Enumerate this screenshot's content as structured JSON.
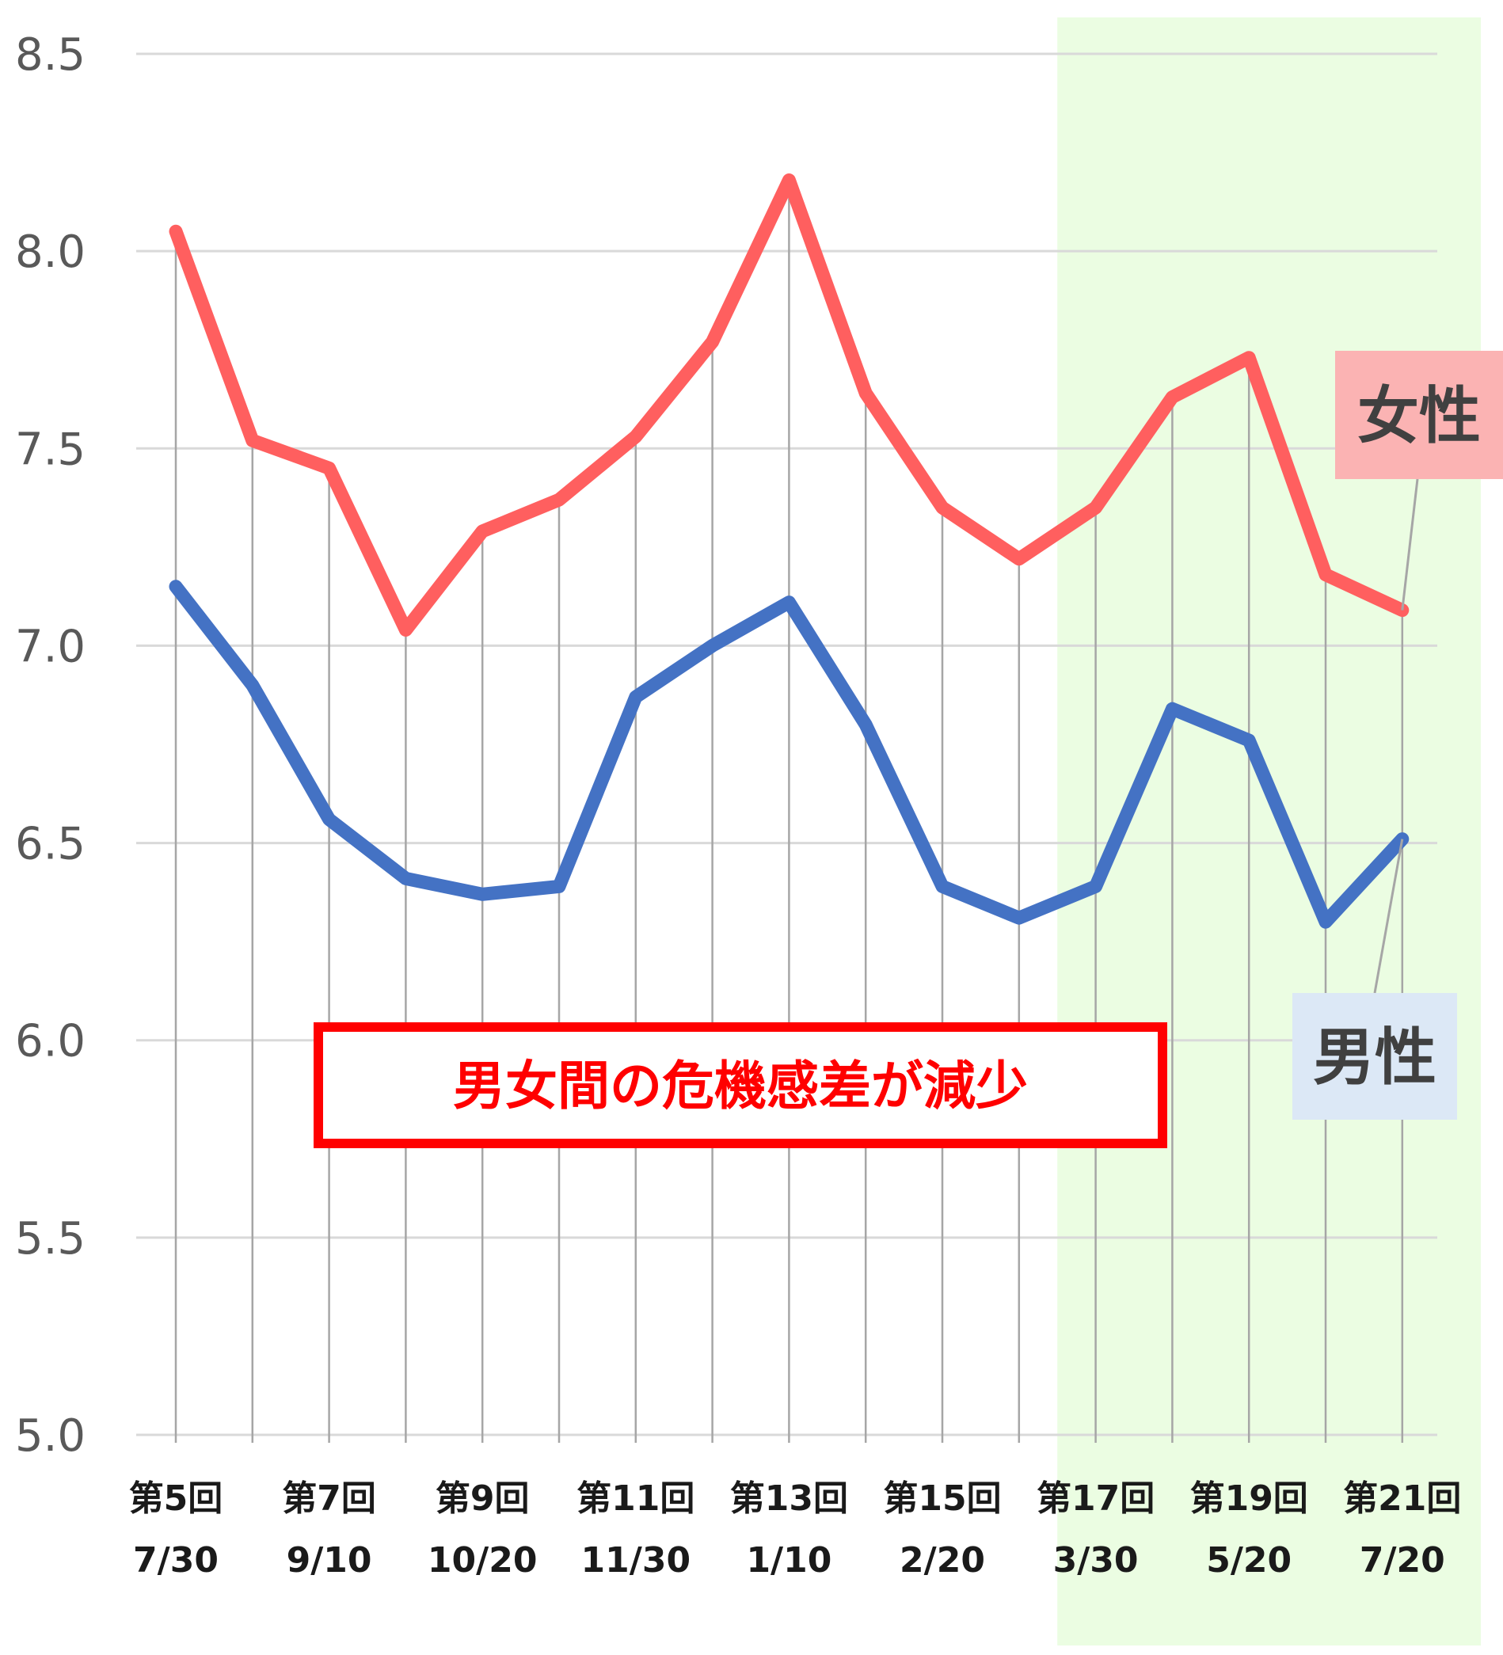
{
  "chart_data": {
    "type": "line",
    "title": "",
    "xlabel": "",
    "ylabel": "",
    "ylim": [
      5.0,
      8.5
    ],
    "yticks": [
      "5.0",
      "5.5",
      "6.0",
      "6.5",
      "7.0",
      "7.5",
      "8.0",
      "8.5"
    ],
    "grid": "horizontal and vertical",
    "categories": [
      [
        "第5回",
        "7/30"
      ],
      [
        "",
        ""
      ],
      [
        "第7回",
        "9/10"
      ],
      [
        "",
        ""
      ],
      [
        "第9回",
        "10/20"
      ],
      [
        "",
        ""
      ],
      [
        "第11回",
        "11/30"
      ],
      [
        "",
        ""
      ],
      [
        "第13回",
        "1/10"
      ],
      [
        "",
        ""
      ],
      [
        "第15回",
        "2/20"
      ],
      [
        "",
        ""
      ],
      [
        "第17回",
        "3/30"
      ],
      [
        "",
        ""
      ],
      [
        "第19回",
        "5/20"
      ],
      [
        "",
        ""
      ],
      [
        "第21回",
        "7/20"
      ]
    ],
    "highlight_range": {
      "from_index": 11.5,
      "to_index": 16.5,
      "color": "#ebfde2"
    },
    "series": [
      {
        "name": "女性",
        "color": "#ff5f5f",
        "label_bg": "#fbb3b3",
        "values": [
          8.05,
          7.52,
          7.45,
          7.04,
          7.29,
          7.37,
          7.53,
          7.77,
          8.18,
          7.64,
          7.35,
          7.22,
          7.35,
          7.63,
          7.73,
          7.18,
          7.09
        ]
      },
      {
        "name": "男性",
        "color": "#4472c4",
        "label_bg": "#dce8f6",
        "values": [
          7.15,
          6.9,
          6.56,
          6.41,
          6.37,
          6.39,
          6.87,
          7.0,
          7.11,
          6.8,
          6.39,
          6.31,
          6.39,
          6.84,
          6.76,
          6.3,
          6.51
        ]
      }
    ],
    "annotation": {
      "text": "男女間の危機感差が減少",
      "color": "#ff0000"
    }
  }
}
